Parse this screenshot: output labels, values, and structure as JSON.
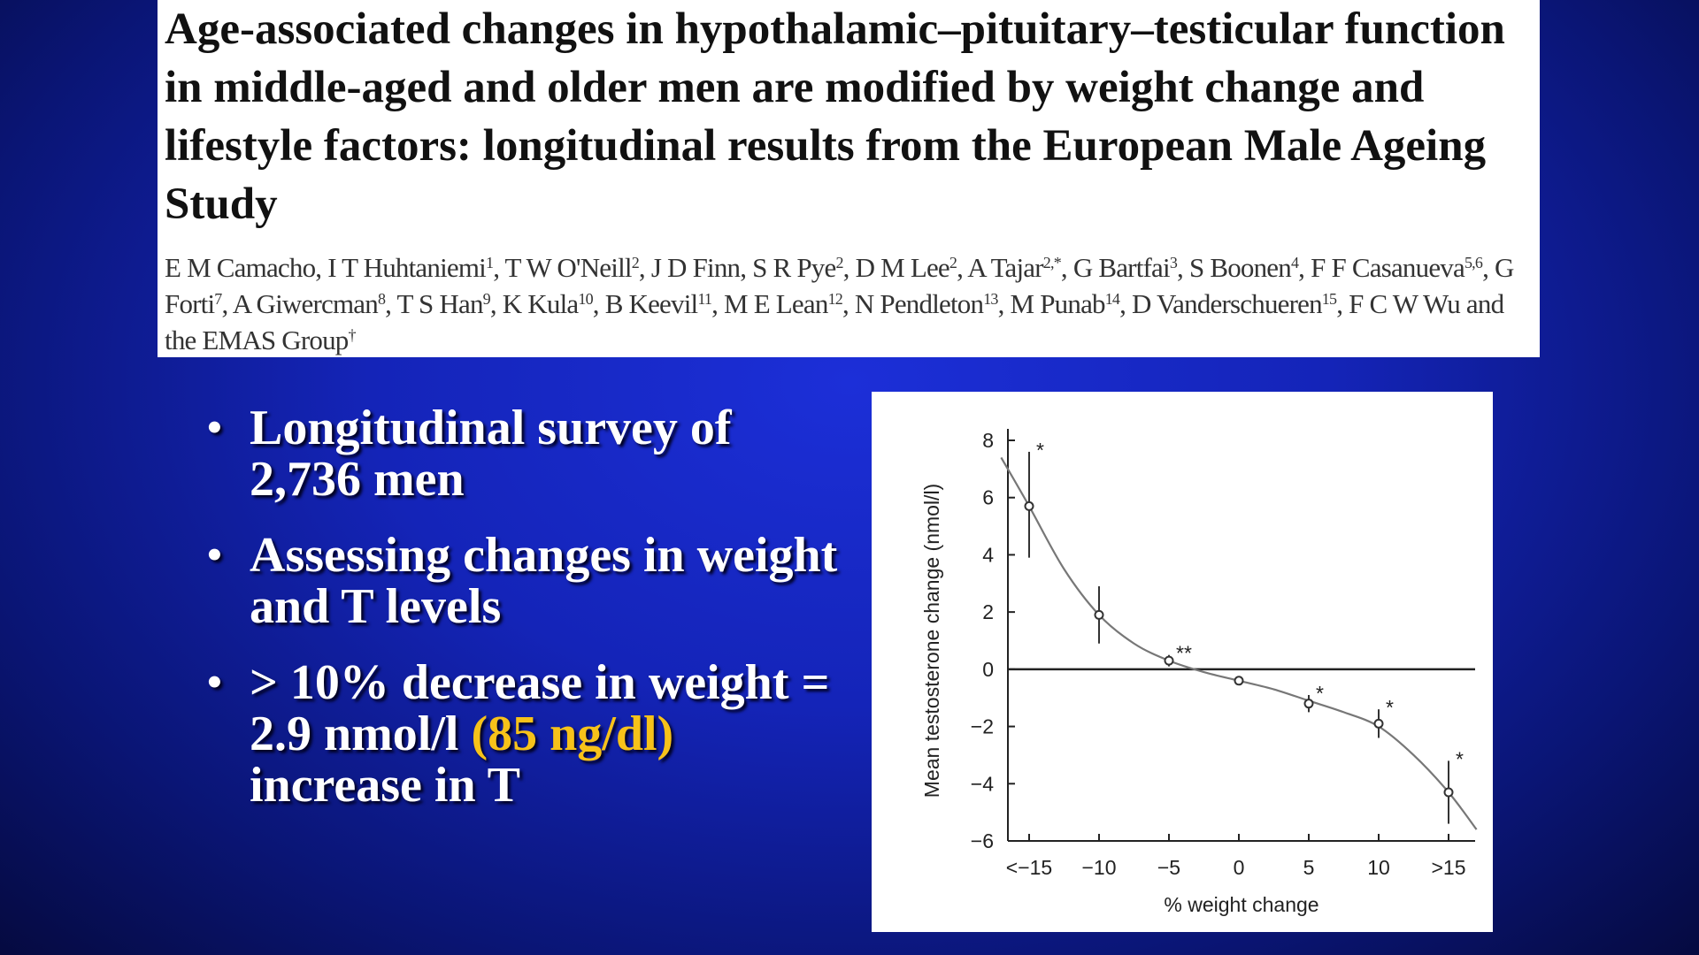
{
  "paper": {
    "title": "Age-associated changes in hypothalamic–pituitary–testicular function in middle-aged and older men are modified by weight change and lifestyle factors: longitudinal results from the European Male Ageing Study",
    "authors": [
      {
        "name": "E M Camacho",
        "sup": ""
      },
      {
        "name": "I T Huhtaniemi",
        "sup": "1"
      },
      {
        "name": "T W O'Neill",
        "sup": "2"
      },
      {
        "name": "J D Finn",
        "sup": ""
      },
      {
        "name": "S R Pye",
        "sup": "2"
      },
      {
        "name": "D M Lee",
        "sup": "2"
      },
      {
        "name": "A Tajar",
        "sup": "2,*"
      },
      {
        "name": "G Bartfai",
        "sup": "3"
      },
      {
        "name": "S Boonen",
        "sup": "4"
      },
      {
        "name": "F F Casanueva",
        "sup": "5,6"
      },
      {
        "name": "G Forti",
        "sup": "7"
      },
      {
        "name": "A Giwercman",
        "sup": "8"
      },
      {
        "name": "T S Han",
        "sup": "9"
      },
      {
        "name": "K Kula",
        "sup": "10"
      },
      {
        "name": "B Keevil",
        "sup": "11"
      },
      {
        "name": "M E Lean",
        "sup": "12"
      },
      {
        "name": "N Pendleton",
        "sup": "13"
      },
      {
        "name": "M Punab",
        "sup": "14"
      },
      {
        "name": "D Vanderschueren",
        "sup": "15"
      },
      {
        "name": "F C W Wu and the EMAS Group",
        "sup": "†"
      }
    ]
  },
  "bullets": {
    "item1": "Longitudinal survey of 2,736 men",
    "item2": "Assessing changes in weight and T levels",
    "item3_pre": "> 10% decrease in weight = 2.9 nmol/l",
    "item3_highlight": "(85 ng/dl)",
    "item3_post": "increase in T",
    "bullet_glyph": "•",
    "highlight_color": "#f7c21a"
  },
  "chart_data": {
    "type": "scatter",
    "xlabel": "% weight change",
    "ylabel": "Mean testosterone change (nmol/l)",
    "x_tick_labels": [
      "<−15",
      "−10",
      "−5",
      "0",
      "5",
      "10",
      ">15"
    ],
    "y_ticks": [
      8,
      6,
      4,
      2,
      0,
      -2,
      -4,
      -6
    ],
    "y_tick_labels": [
      "8",
      "6",
      "4",
      "2",
      "0",
      "−2",
      "−4",
      "−6"
    ],
    "ylim": [
      -6,
      8
    ],
    "grid": false,
    "reference_line_y": 0,
    "points": [
      {
        "x": "<−15",
        "y": 5.7,
        "ci_low": 3.9,
        "ci_high": 7.6,
        "annotation": "*"
      },
      {
        "x": "−10",
        "y": 1.9,
        "ci_low": 0.9,
        "ci_high": 2.9,
        "annotation": ""
      },
      {
        "x": "−5",
        "y": 0.3,
        "ci_low": 0.1,
        "ci_high": 0.5,
        "annotation": "**"
      },
      {
        "x": "0",
        "y": -0.4,
        "ci_low": -0.5,
        "ci_high": -0.3,
        "annotation": ""
      },
      {
        "x": "5",
        "y": -1.2,
        "ci_low": -1.5,
        "ci_high": -0.9,
        "annotation": "*"
      },
      {
        "x": "10",
        "y": -1.9,
        "ci_low": -2.4,
        "ci_high": -1.4,
        "annotation": "*"
      },
      {
        "x": ">15",
        "y": -4.3,
        "ci_low": -5.4,
        "ci_high": -3.2,
        "annotation": "*"
      }
    ],
    "fit_curve": [
      {
        "x": -17,
        "y": 7.4
      },
      {
        "x": -15,
        "y": 5.7
      },
      {
        "x": -12.5,
        "y": 3.5
      },
      {
        "x": -10,
        "y": 1.9
      },
      {
        "x": -7.5,
        "y": 0.9
      },
      {
        "x": -5,
        "y": 0.3
      },
      {
        "x": -2.5,
        "y": -0.1
      },
      {
        "x": 0,
        "y": -0.4
      },
      {
        "x": 2.5,
        "y": -0.7
      },
      {
        "x": 5,
        "y": -1.1
      },
      {
        "x": 7.5,
        "y": -1.5
      },
      {
        "x": 10,
        "y": -2.0
      },
      {
        "x": 12.5,
        "y": -3.0
      },
      {
        "x": 15,
        "y": -4.3
      },
      {
        "x": 17,
        "y": -5.6
      }
    ]
  }
}
